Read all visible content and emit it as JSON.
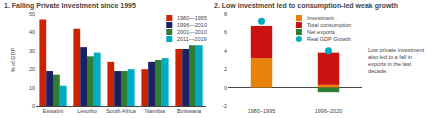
{
  "chart_data": [
    {
      "type": "bar",
      "title": "1. Falling Private Investment since 1995",
      "categories": [
        "Eswatini",
        "Lesotho",
        "South Africa",
        "Namibia",
        "Botswana"
      ],
      "series": [
        {
          "name": "1980—1995",
          "color": "#cc2200",
          "values": [
            47,
            42,
            24,
            20,
            31
          ]
        },
        {
          "name": "1996—2010",
          "color": "#1a2060",
          "values": [
            19,
            32,
            19,
            24,
            31
          ]
        },
        {
          "name": "2001—2010",
          "color": "#2e7d32",
          "values": [
            17,
            27,
            19,
            25,
            33
          ]
        },
        {
          "name": "2011—2019",
          "color": "#00acc1",
          "values": [
            11,
            29,
            20,
            26,
            33
          ]
        }
      ],
      "ylabel": "% of GDP",
      "ylim": [
        0,
        50
      ],
      "yticks": [
        0,
        10,
        20,
        30,
        40,
        50
      ],
      "grid": false,
      "legend": "upper right"
    },
    {
      "type": "bar",
      "title": "2. Low investment led to consumption-led weak growth",
      "annotations": [
        "Low private investment\nalso led to a fall in\nexports in the last\ndecade."
      ],
      "categories": [
        "1980–1995",
        "1996–2020"
      ],
      "stacked": true,
      "series": [
        {
          "name": "Investment",
          "color": "#e8820a",
          "values": [
            3.2,
            0.3
          ]
        },
        {
          "name": "Total consumption",
          "color": "#cc1111",
          "values": [
            3.5,
            3.5
          ]
        },
        {
          "name": "Net exports",
          "color": "#2e7d32",
          "values": [
            0.0,
            -0.5
          ]
        },
        {
          "name": "Real GDP Growth",
          "color": "#00acc1",
          "values": [
            7.2,
            4.0
          ],
          "type": "scatter",
          "marker": "circle"
        }
      ],
      "ylim": [
        -2,
        8
      ],
      "yticks": [
        -2,
        0,
        2,
        4,
        6,
        8
      ],
      "grid": false,
      "legend": "upper right"
    }
  ]
}
